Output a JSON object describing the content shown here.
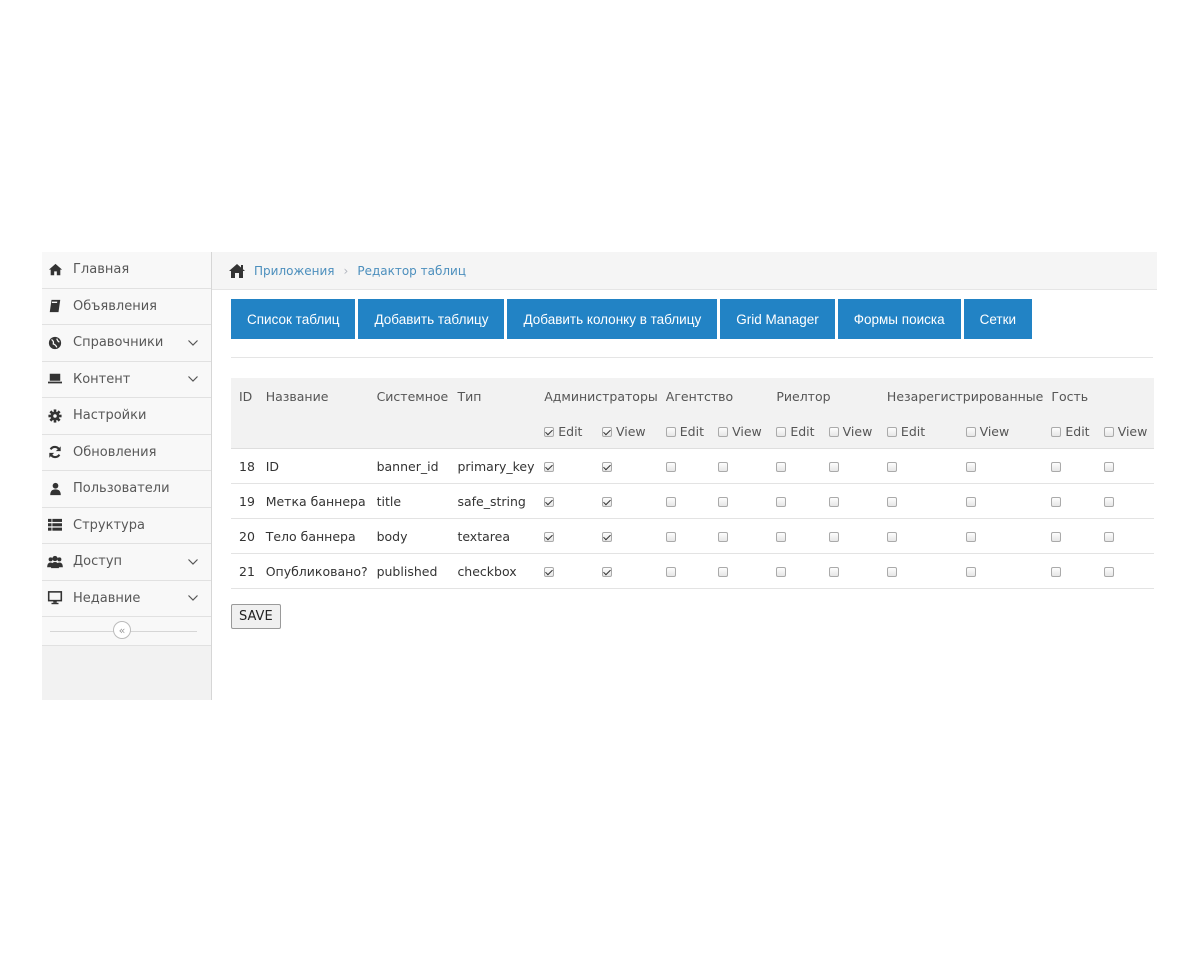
{
  "sidebar": {
    "items": [
      {
        "label": "Главная",
        "icon": "home-icon",
        "chevron": false
      },
      {
        "label": "Объявления",
        "icon": "book-icon",
        "chevron": false
      },
      {
        "label": "Справочники",
        "icon": "globe-icon",
        "chevron": true
      },
      {
        "label": "Контент",
        "icon": "laptop-icon",
        "chevron": true
      },
      {
        "label": "Настройки",
        "icon": "cog-icon",
        "chevron": false
      },
      {
        "label": "Обновления",
        "icon": "refresh-icon",
        "chevron": false
      },
      {
        "label": "Пользователи",
        "icon": "user-icon",
        "chevron": false
      },
      {
        "label": "Структура",
        "icon": "list-icon",
        "chevron": false
      },
      {
        "label": "Доступ",
        "icon": "users-icon",
        "chevron": true
      },
      {
        "label": "Недавние",
        "icon": "desktop-icon",
        "chevron": true
      }
    ],
    "collapse_glyph": "«"
  },
  "breadcrumb": {
    "items": [
      "Приложения",
      "Редактор таблиц"
    ],
    "separator": "›"
  },
  "toolbar": {
    "buttons": [
      "Список таблиц",
      "Добавить таблицу",
      "Добавить колонку в таблицу",
      "Grid Manager",
      "Формы поиска",
      "Сетки"
    ]
  },
  "table": {
    "headers": [
      "ID",
      "Название",
      "Системное",
      "Тип"
    ],
    "groups": [
      "Администраторы",
      "Агентство",
      "Риелтор",
      "Незарегистрированные",
      "Гость"
    ],
    "edit_label": "Edit",
    "view_label": "View",
    "group_header_checked": [
      [
        true,
        true
      ],
      [
        false,
        false
      ],
      [
        false,
        false
      ],
      [
        false,
        false
      ],
      [
        false,
        false
      ]
    ],
    "rows": [
      {
        "id": "18",
        "name": "ID",
        "system": "banner_id",
        "type": "primary_key",
        "checks": [
          true,
          true,
          false,
          false,
          false,
          false,
          false,
          false,
          false,
          false
        ]
      },
      {
        "id": "19",
        "name": "Метка баннера",
        "system": "title",
        "type": "safe_string",
        "checks": [
          true,
          true,
          false,
          false,
          false,
          false,
          false,
          false,
          false,
          false
        ]
      },
      {
        "id": "20",
        "name": "Тело баннера",
        "system": "body",
        "type": "textarea",
        "checks": [
          true,
          true,
          false,
          false,
          false,
          false,
          false,
          false,
          false,
          false
        ]
      },
      {
        "id": "21",
        "name": "Опубликовано?",
        "system": "published",
        "type": "checkbox",
        "checks": [
          true,
          true,
          false,
          false,
          false,
          false,
          false,
          false,
          false,
          false
        ]
      }
    ]
  },
  "save_label": "SAVE",
  "colors": {
    "primary": "#2283c5",
    "link": "#4c8fbd"
  }
}
